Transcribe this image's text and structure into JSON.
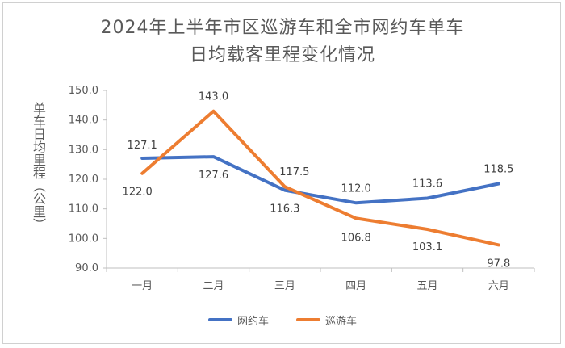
{
  "chart_data": {
    "type": "line",
    "title_line1": "2024年上半年市区巡游车和全市网约车单车",
    "title_line2": "日均载客里程变化情况",
    "ylabel": "单车日均里程（公里）",
    "categories": [
      "一月",
      "二月",
      "三月",
      "四月",
      "五月",
      "六月"
    ],
    "ylim": [
      90,
      150
    ],
    "yticks": [
      "90.0",
      "100.0",
      "110.0",
      "120.0",
      "130.0",
      "140.0",
      "150.0"
    ],
    "grid": false,
    "legend_position": "bottom",
    "series": [
      {
        "name": "网约车",
        "color": "#4472C4",
        "values": [
          127.1,
          127.6,
          116.3,
          112.0,
          113.6,
          118.5
        ],
        "labels": [
          "127.1",
          "127.6",
          "116.3",
          "112.0",
          "113.6",
          "118.5"
        ]
      },
      {
        "name": "巡游车",
        "color": "#ED7D31",
        "values": [
          122.0,
          143.0,
          117.5,
          106.8,
          103.1,
          97.8
        ],
        "labels": [
          "122.0",
          "143.0",
          "117.5",
          "106.8",
          "103.1",
          "97.8"
        ]
      }
    ]
  }
}
